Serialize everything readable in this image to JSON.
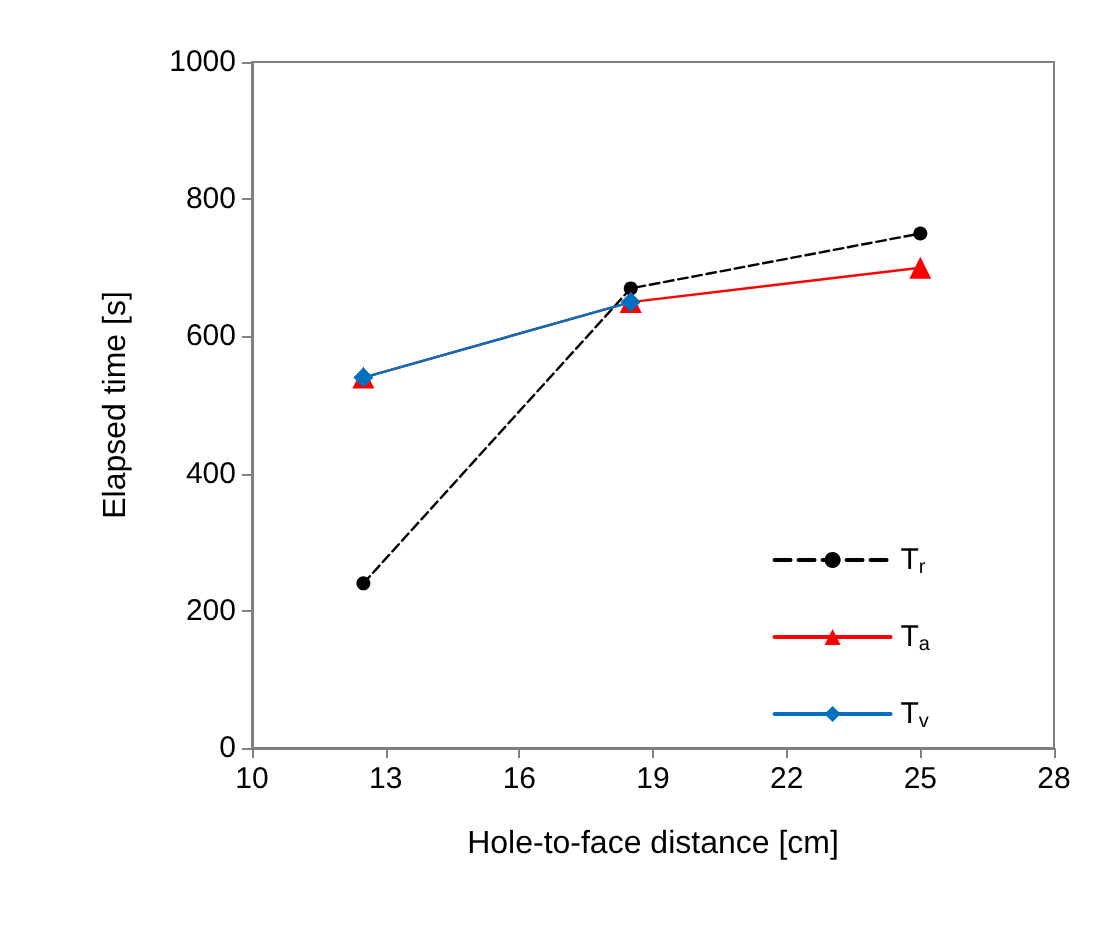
{
  "chart_data": {
    "type": "line",
    "xlabel": "Hole-to-face distance [cm]",
    "ylabel": "Elapsed time [s]",
    "xlim": [
      10,
      28
    ],
    "xticks": [
      10,
      13,
      16,
      19,
      22,
      25,
      28
    ],
    "ylim": [
      0,
      1000
    ],
    "yticks": [
      0,
      200,
      400,
      600,
      800,
      1000
    ],
    "grid": false,
    "legend": "bottom right",
    "series": [
      {
        "name": "T$_{r}$",
        "color": "#000000",
        "x": [
          12.5,
          18.5,
          25
        ],
        "values": [
          240,
          670,
          750
        ],
        "marker": "circle",
        "line_style": "dashed"
      },
      {
        "name": "T$_{a}$",
        "color": "#ff0000",
        "x": [
          12.5,
          18.5,
          25
        ],
        "values": [
          540,
          650,
          700
        ],
        "marker": "triangle",
        "line_style": "solid"
      },
      {
        "name": "T$_{v}$",
        "color": "#0070c0",
        "x": [
          12.5,
          18.5
        ],
        "values": [
          540,
          650
        ],
        "marker": "diamond",
        "line_style": "solid"
      }
    ]
  }
}
